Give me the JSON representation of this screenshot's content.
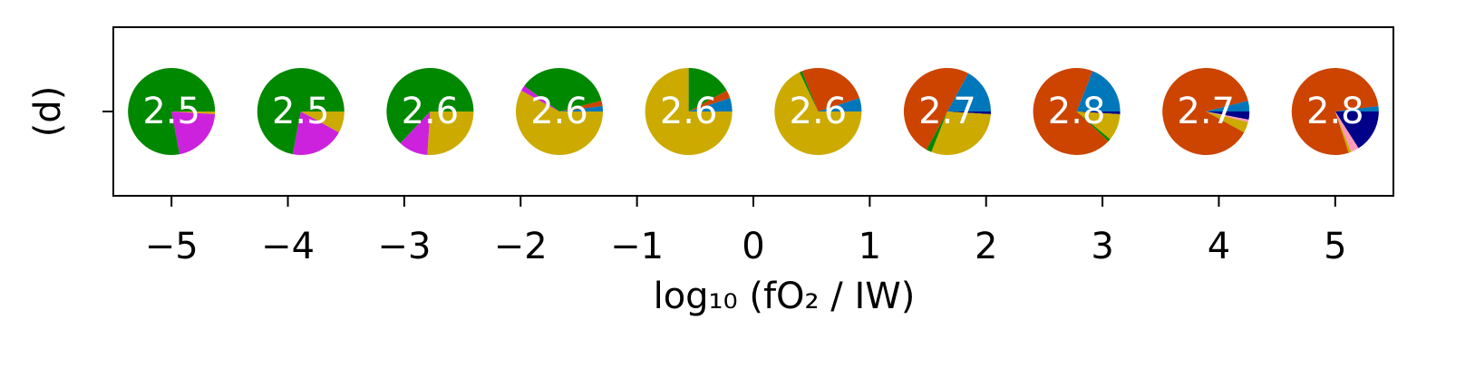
{
  "chart_data": {
    "type": "pie",
    "xlabel": "log₁₀ (fO₂ / IW)",
    "ylabel": "(d)",
    "xlim": [
      -5.5,
      5.5
    ],
    "xticks": [
      {
        "value": -5,
        "label": "−5"
      },
      {
        "value": -4,
        "label": "−4"
      },
      {
        "value": -3,
        "label": "−3"
      },
      {
        "value": -2,
        "label": "−2"
      },
      {
        "value": -1,
        "label": "−1"
      },
      0,
      1,
      2,
      3,
      4,
      5
    ],
    "colors": [
      "#000088",
      "#ff99bb",
      "#ccaa00",
      "#cc22dd",
      "#008800",
      "#cc4400",
      "#0077bb"
    ],
    "pies": [
      {
        "x": -5,
        "label": 2.5,
        "values": [
          0,
          0,
          1,
          21,
          78,
          0,
          0
        ]
      },
      {
        "x": -3.889,
        "label": 2.5,
        "values": [
          0,
          0,
          8,
          20,
          72,
          0,
          0
        ]
      },
      {
        "x": -2.778,
        "label": 2.6,
        "values": [
          0,
          0,
          26,
          11,
          63,
          0,
          0
        ]
      },
      {
        "x": -1.667,
        "label": 2.6,
        "values": [
          0,
          0,
          58,
          2,
          36,
          2,
          2
        ]
      },
      {
        "x": -0.556,
        "label": 2.6,
        "values": [
          0,
          0,
          75,
          0,
          17,
          3,
          5
        ]
      },
      {
        "x": 0.556,
        "label": 2.6,
        "values": [
          0,
          0,
          68,
          0,
          1,
          26,
          5
        ]
      },
      {
        "x": 1.667,
        "label": 2.7,
        "values": [
          1,
          0,
          30,
          0,
          2,
          50,
          17
        ]
      },
      {
        "x": 2.778,
        "label": 2.8,
        "values": [
          1,
          0,
          10,
          0,
          1,
          69,
          19
        ]
      },
      {
        "x": 3.889,
        "label": 2.7,
        "values": [
          3,
          1,
          4,
          0,
          0,
          88,
          4
        ]
      },
      {
        "x": 5,
        "label": 2.8,
        "values": [
          16,
          3,
          1,
          0,
          0,
          78,
          2
        ]
      }
    ]
  }
}
